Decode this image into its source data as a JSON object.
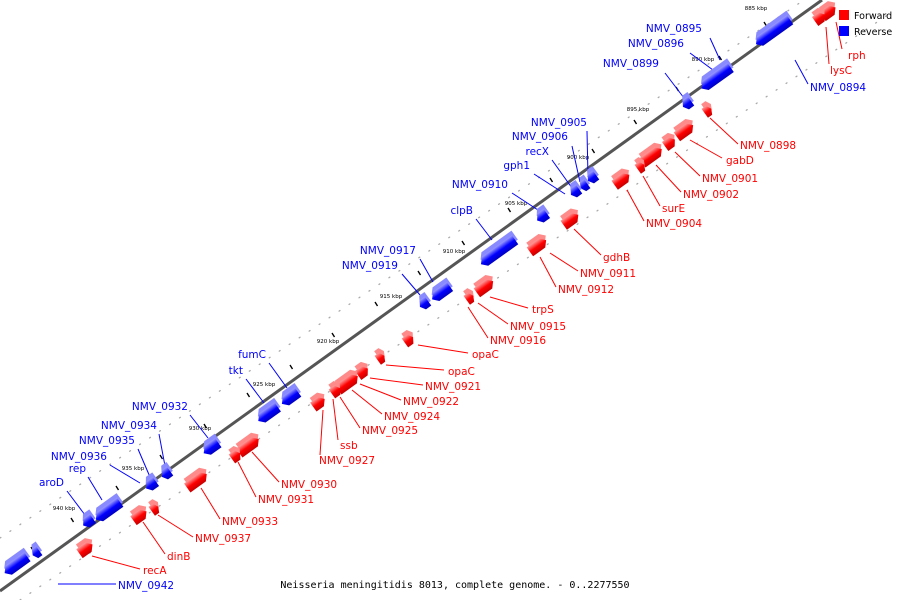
{
  "caption": "Neisseria meningitidis 8013, complete genome. - 0..2277550",
  "legend": {
    "forward": {
      "label": "Forward",
      "color": "#ff0000"
    },
    "reverse": {
      "label": "Reverse",
      "color": "#0000ff"
    }
  },
  "ticks": [
    "885 kbp",
    "890 kbp",
    "895 kbp",
    "900 kbp",
    "905 kbp",
    "910 kbp",
    "915 kbp",
    "920 kbp",
    "925 kbp",
    "930 kbp",
    "935 kbp",
    "940 kbp"
  ],
  "genes_forward": [
    "rph",
    "lysC",
    "NMV_0898",
    "gabD",
    "NMV_0901",
    "NMV_0902",
    "surE",
    "NMV_0904",
    "gdhB",
    "NMV_0911",
    "NMV_0912",
    "trpS",
    "NMV_0915",
    "NMV_0916",
    "opaC",
    "opaC",
    "NMV_0921",
    "NMV_0922",
    "NMV_0924",
    "NMV_0925",
    "ssb",
    "NMV_0927",
    "NMV_0930",
    "NMV_0931",
    "NMV_0933",
    "NMV_0937",
    "dinB",
    "recA"
  ],
  "genes_reverse": [
    "NMV_0895",
    "NMV_0896",
    "NMV_0894",
    "NMV_0899",
    "NMV_0905",
    "NMV_0906",
    "recX",
    "gph1",
    "NMV_0910",
    "clpB",
    "NMV_0917",
    "NMV_0919",
    "fumC",
    "tkt",
    "NMV_0932",
    "NMV_0934",
    "NMV_0935",
    "NMV_0936",
    "rep",
    "aroD",
    "NMV_0942"
  ]
}
